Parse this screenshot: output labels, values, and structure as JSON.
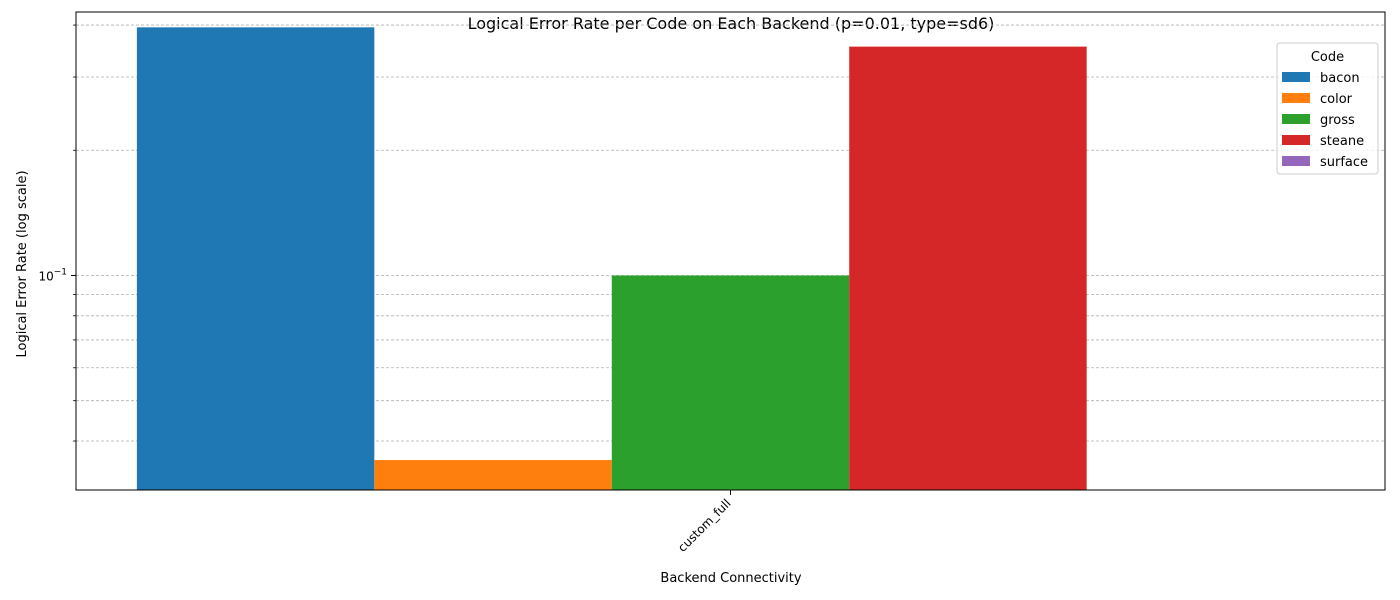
{
  "chart_data": {
    "type": "bar",
    "title": "Logical Error Rate per Code on Each Backend (p=0.01, type=sd6)",
    "xlabel": "Backend Connectivity",
    "ylabel": "Logical Error Rate (log scale)",
    "y_scale": "log",
    "ylim": [
      0.0305,
      0.43
    ],
    "grid": "y, dashed, major and minor",
    "categories": [
      "custom_full"
    ],
    "y_tick_labels": [
      {
        "value": 0.1,
        "label": "10",
        "exponent": "−1"
      }
    ],
    "legend": {
      "title": "Code",
      "placement": "upper right"
    },
    "series": [
      {
        "name": "bacon",
        "color": "#1f77b4",
        "values": [
          0.395
        ]
      },
      {
        "name": "color",
        "color": "#ff7f0e",
        "values": [
          0.036
        ]
      },
      {
        "name": "gross",
        "color": "#2ca02c",
        "values": [
          0.1
        ]
      },
      {
        "name": "steane",
        "color": "#d62728",
        "values": [
          0.355
        ]
      },
      {
        "name": "surface",
        "color": "#9467bd",
        "values": [
          null
        ]
      }
    ]
  }
}
